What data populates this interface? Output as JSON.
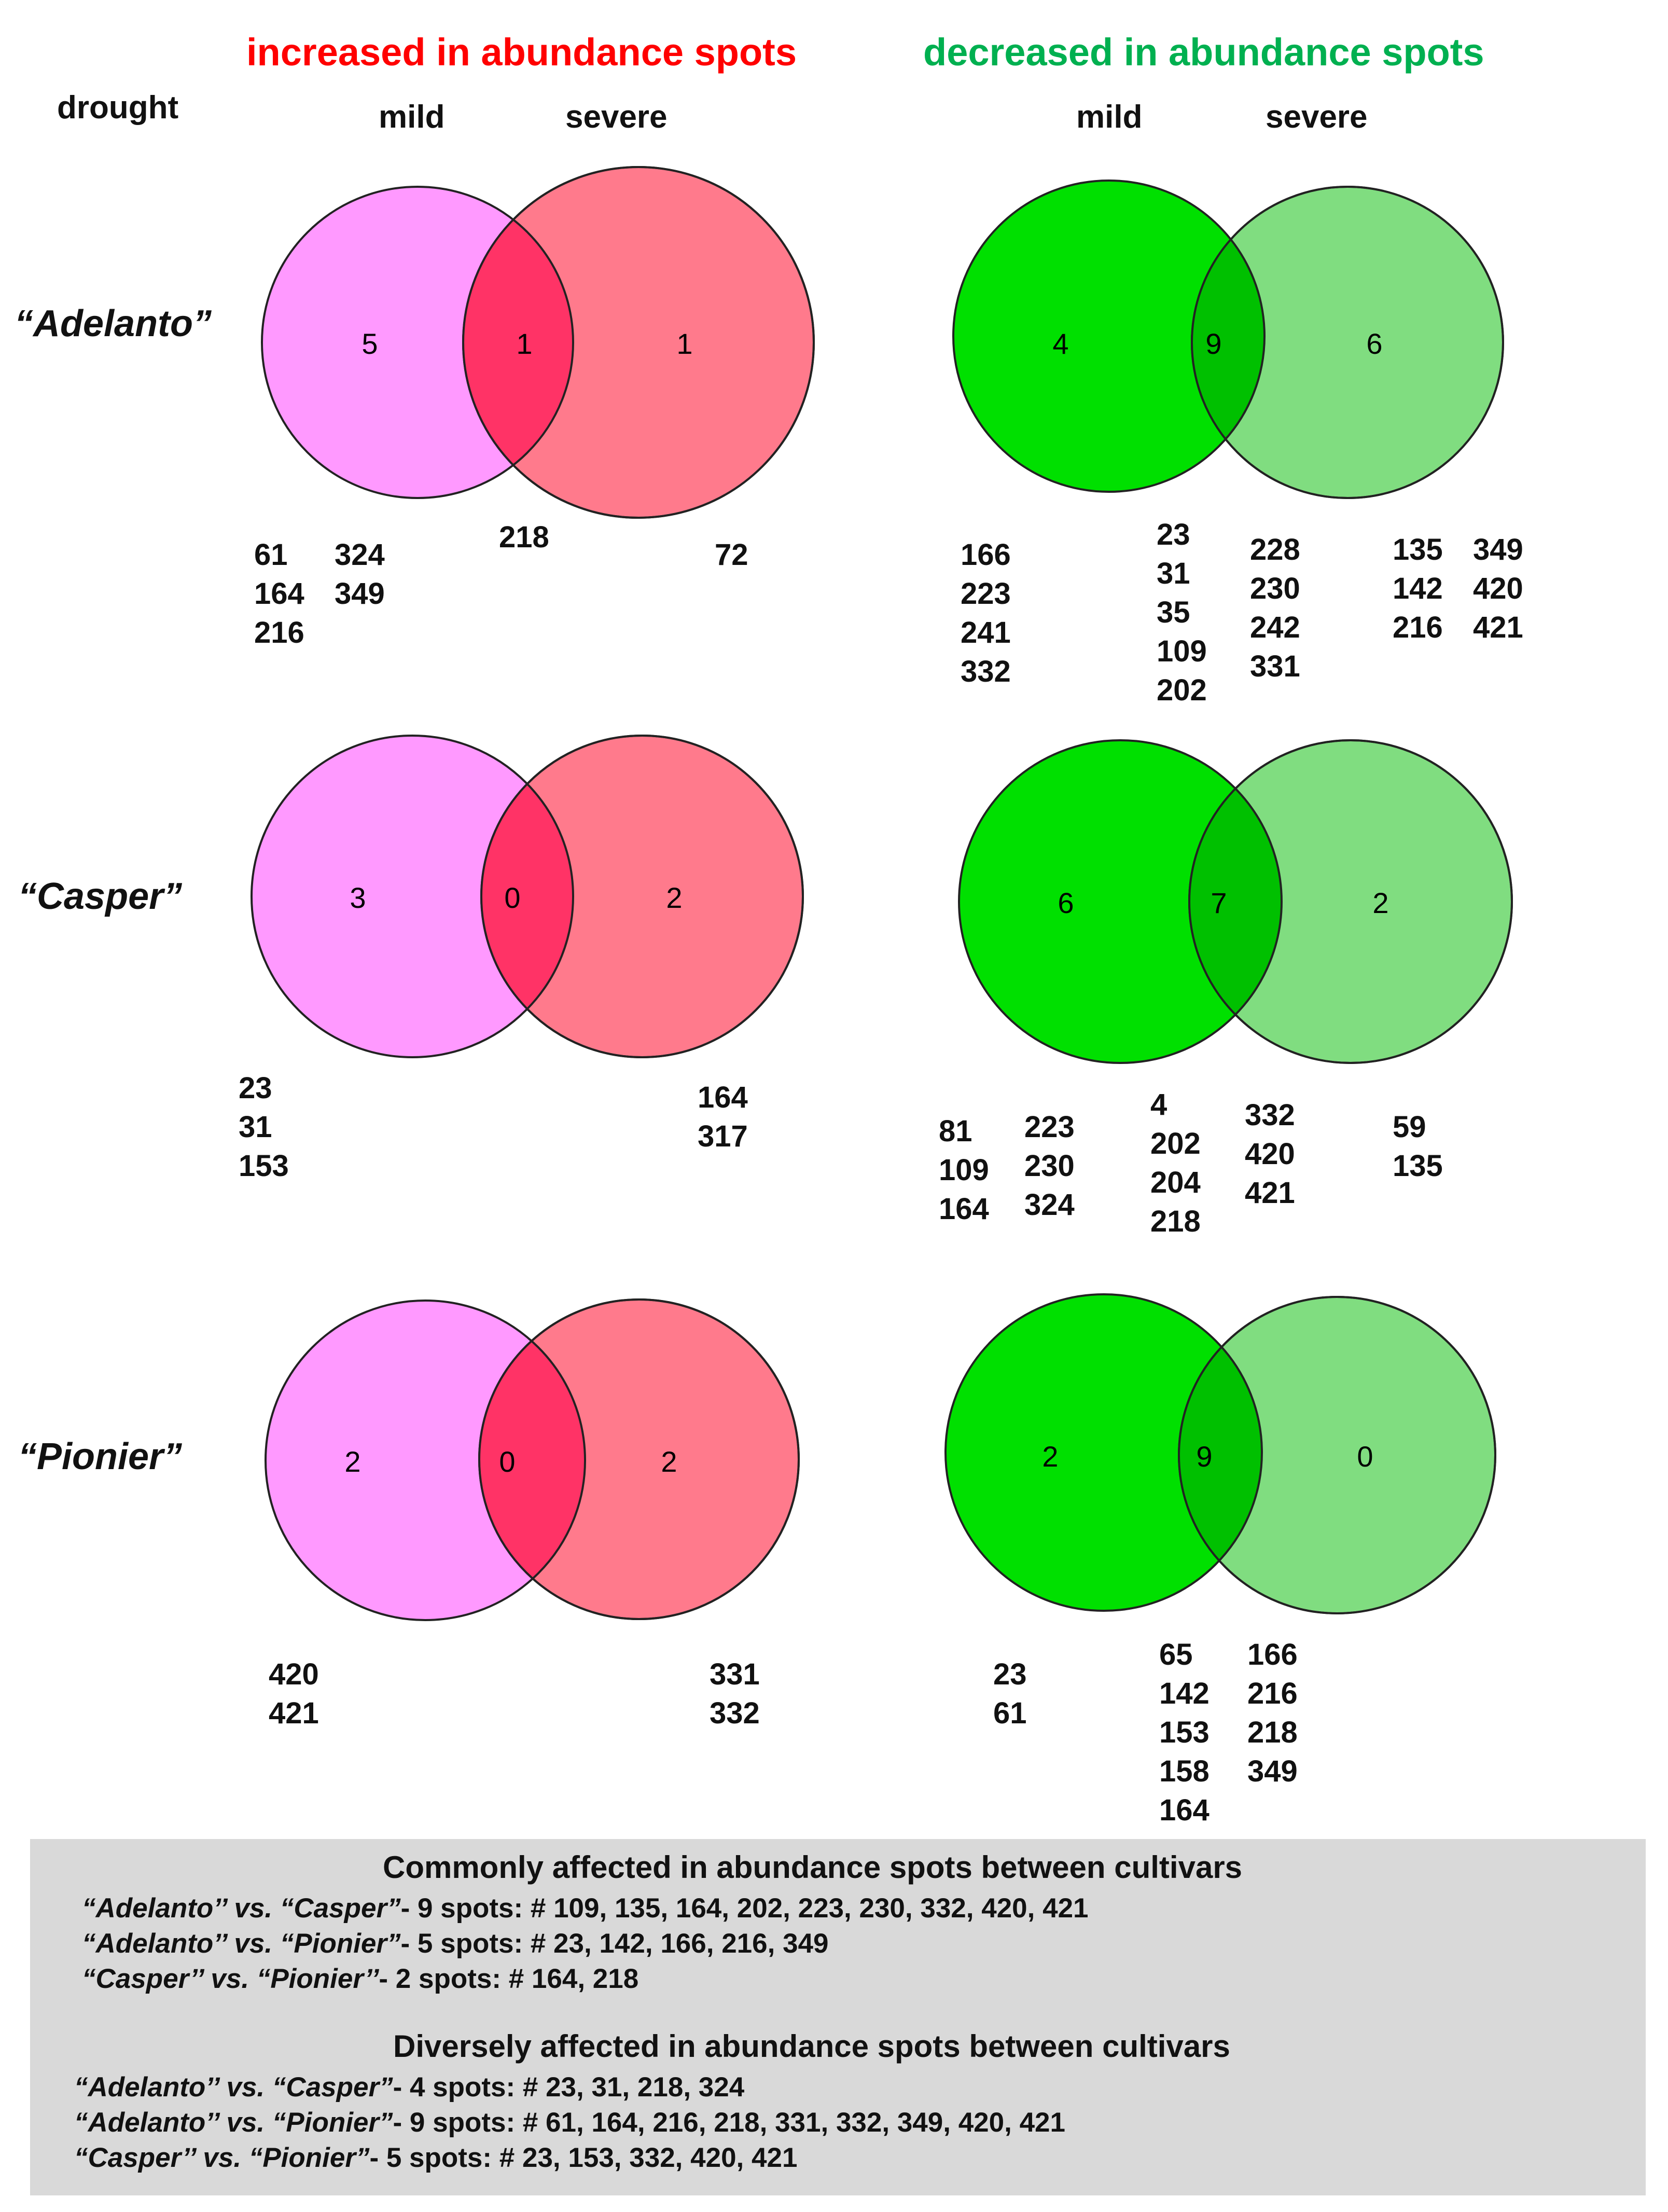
{
  "headers": {
    "increased": "increased in abundance spots",
    "decreased": "decreased in abundance spots",
    "increased_color": "#ff0000",
    "decreased_color": "#00b050",
    "drought": "drought",
    "mild": "mild",
    "severe": "severe"
  },
  "colors": {
    "inc_mild": "#ff99ff",
    "inc_severe": "#ff7a8c",
    "inc_overlap": "#ff3366",
    "dec_mild": "#00e000",
    "dec_severe": "#80dd80",
    "dec_overlap": "#00c000"
  },
  "cultivars": [
    {
      "name": "“Adelanto”",
      "increased": {
        "counts": {
          "mild": "5",
          "both": "1",
          "severe": "1"
        },
        "mild_spots": [
          [
            "61",
            "324"
          ],
          [
            "164",
            "349"
          ],
          [
            "216",
            ""
          ]
        ],
        "both_spots": [
          "218"
        ],
        "severe_spots": [
          "72"
        ]
      },
      "decreased": {
        "counts": {
          "mild": "4",
          "both": "9",
          "severe": "6"
        },
        "mild_spots": [
          "166",
          "223",
          "241",
          "332"
        ],
        "both_spots_a": [
          "23",
          "31",
          "35",
          "109",
          "202"
        ],
        "both_spots_b": [
          "228",
          "230",
          "242",
          "331"
        ],
        "severe_spots": [
          [
            "135",
            "349"
          ],
          [
            "142",
            "420"
          ],
          [
            "216",
            "421"
          ]
        ]
      }
    },
    {
      "name": "“Casper”",
      "increased": {
        "counts": {
          "mild": "3",
          "both": "0",
          "severe": "2"
        },
        "mild_spots": [
          "23",
          "31",
          "153"
        ],
        "severe_spots": [
          "164",
          "317"
        ]
      },
      "decreased": {
        "counts": {
          "mild": "6",
          "both": "7",
          "severe": "2"
        },
        "mild_spots_a": [
          "81",
          "109",
          "164"
        ],
        "mild_spots_b": [
          "223",
          "230",
          "324"
        ],
        "both_spots_a": [
          "4",
          "202",
          "204",
          "218"
        ],
        "both_spots_b": [
          "332",
          "420",
          "421"
        ],
        "severe_spots": [
          "59",
          "135"
        ]
      }
    },
    {
      "name": "“Pionier”",
      "increased": {
        "counts": {
          "mild": "2",
          "both": "0",
          "severe": "2"
        },
        "mild_spots": [
          "420",
          "421"
        ],
        "severe_spots": [
          "331",
          "332"
        ]
      },
      "decreased": {
        "counts": {
          "mild": "2",
          "both": "9",
          "severe": "0"
        },
        "mild_spots": [
          "23",
          "61"
        ],
        "both_spots_a": [
          "65",
          "142",
          "153",
          "158",
          "164"
        ],
        "both_spots_b": [
          "166",
          "216",
          "218",
          "349"
        ]
      }
    }
  ],
  "summary": {
    "common_title": "Commonly  affected in abundance spots between cultivars",
    "common": [
      {
        "pair": "“Adelanto’’ vs. “Casper”",
        "text": "- 9 spots: # 109, 135, 164, 202, 223, 230, 332, 420, 421"
      },
      {
        "pair": "“Adelanto’’ vs. “Pionier”",
        "text": "- 5 spots: # 23, 142, 166, 216, 349"
      },
      {
        "pair": "“Casper’’ vs. “Pionier’’",
        "text": "- 2 spots: # 164, 218"
      }
    ],
    "diverse_title": "Diversely affected in abundance spots between cultivars",
    "diverse": [
      {
        "pair": "“Adelanto’’ vs. “Casper”",
        "text": "- 4 spots: # 23, 31, 218, 324"
      },
      {
        "pair": "“Adelanto’’ vs. “Pionier”",
        "text": "- 9 spots: # 61, 164, 216, 218, 331, 332, 349, 420, 421"
      },
      {
        "pair": "“Casper’’ vs. “Pionier”",
        "text": "- 5 spots:  # 23, 153, 332, 420, 421"
      }
    ]
  }
}
